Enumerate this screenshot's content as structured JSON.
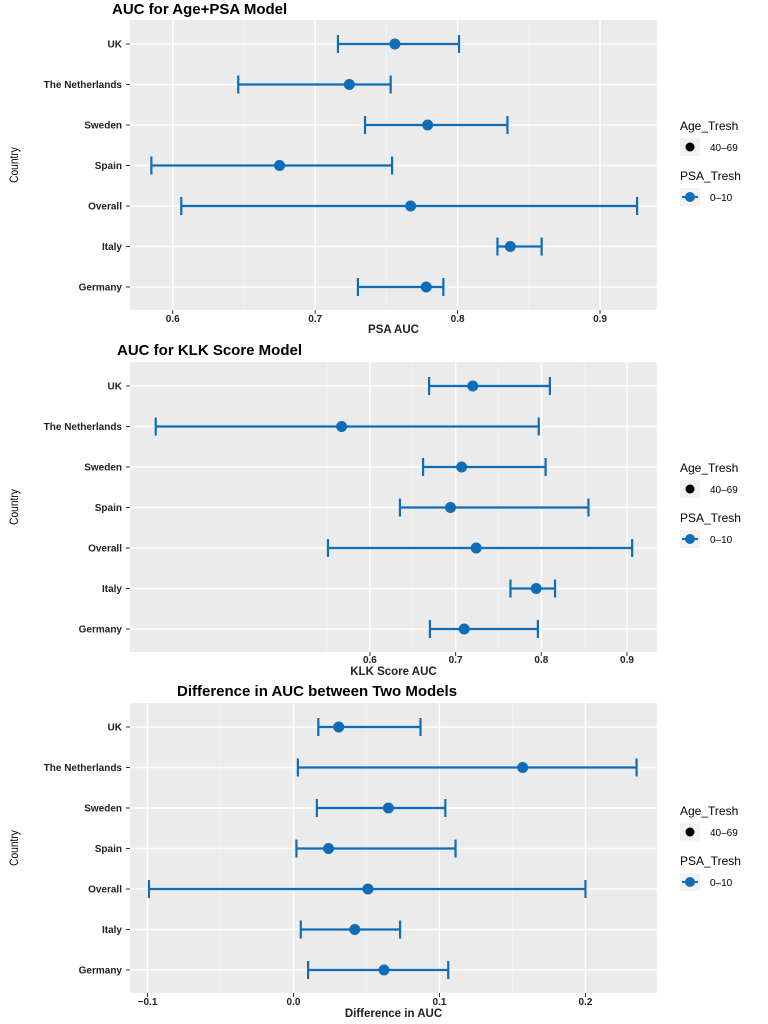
{
  "chart_data": [
    {
      "type": "forest",
      "title": "AUC for Age+PSA Model",
      "xlabel": "PSA AUC",
      "ylabel": "Country",
      "xlim": [
        0.57,
        0.94
      ],
      "xticks": [
        0.6,
        0.7,
        0.8,
        0.9
      ],
      "xtick_labels": [
        "0.6",
        "0.7",
        "0.8",
        "0.9"
      ],
      "grid": true,
      "categories": [
        "UK",
        "The Netherlands",
        "Sweden",
        "Spain",
        "Overall",
        "Italy",
        "Germany"
      ],
      "estimate": [
        0.756,
        0.724,
        0.779,
        0.675,
        0.767,
        0.837,
        0.778
      ],
      "lower": [
        0.716,
        0.646,
        0.735,
        0.585,
        0.606,
        0.828,
        0.73
      ],
      "upper": [
        0.801,
        0.753,
        0.835,
        0.754,
        0.926,
        0.859,
        0.79
      ],
      "legend": {
        "position": "right",
        "groups": [
          {
            "title": "Age_Tresh",
            "entries": [
              "40–69"
            ]
          },
          {
            "title": "PSA_Tresh",
            "entries": [
              "0–10"
            ]
          }
        ]
      }
    },
    {
      "type": "forest",
      "title": "AUC for KLK Score Model",
      "xlabel": "KLK Score AUC",
      "ylabel": "Country",
      "xlim": [
        0.32,
        0.935
      ],
      "xticks": [
        0.6,
        0.7,
        0.8,
        0.9
      ],
      "xtick_labels": [
        "0.6",
        "0.7",
        "0.8",
        "0.9"
      ],
      "grid": true,
      "categories": [
        "UK",
        "The Netherlands",
        "Sweden",
        "Spain",
        "Overall",
        "Italy",
        "Germany"
      ],
      "estimate": [
        0.72,
        0.567,
        0.707,
        0.694,
        0.724,
        0.794,
        0.71
      ],
      "lower": [
        0.669,
        0.35,
        0.662,
        0.635,
        0.551,
        0.764,
        0.67
      ],
      "upper": [
        0.81,
        0.797,
        0.805,
        0.855,
        0.906,
        0.816,
        0.796
      ],
      "legend": {
        "position": "right",
        "groups": [
          {
            "title": "Age_Tresh",
            "entries": [
              "40–69"
            ]
          },
          {
            "title": "PSA_Tresh",
            "entries": [
              "0–10"
            ]
          }
        ]
      }
    },
    {
      "type": "forest",
      "title": "Difference in AUC between Two Models",
      "xlabel": "Difference in AUC",
      "ylabel": "Country",
      "xlim": [
        -0.112,
        0.249
      ],
      "xticks": [
        -0.1,
        0.0,
        0.1,
        0.2
      ],
      "xtick_labels": [
        "−0.1",
        "0.0",
        "0.1",
        "0.2"
      ],
      "grid": true,
      "categories": [
        "UK",
        "The Netherlands",
        "Sweden",
        "Spain",
        "Overall",
        "Italy",
        "Germany"
      ],
      "estimate": [
        0.031,
        0.157,
        0.065,
        0.024,
        0.051,
        0.042,
        0.062
      ],
      "lower": [
        0.017,
        0.003,
        0.016,
        0.002,
        -0.099,
        0.005,
        0.01
      ],
      "upper": [
        0.087,
        0.235,
        0.104,
        0.111,
        0.2,
        0.073,
        0.106
      ],
      "legend": {
        "position": "right",
        "groups": [
          {
            "title": "Age_Tresh",
            "entries": [
              "40–69"
            ]
          },
          {
            "title": "PSA_Tresh",
            "entries": [
              "0–10"
            ]
          }
        ]
      }
    }
  ],
  "colors": {
    "panel_background": "#ebebeb",
    "grid_major": "#ffffff",
    "grid_minor": "#f3f3f3",
    "series": "#0f6db8",
    "legend_key_background": "#f2f2f2",
    "legend_black_point": "#000000"
  }
}
